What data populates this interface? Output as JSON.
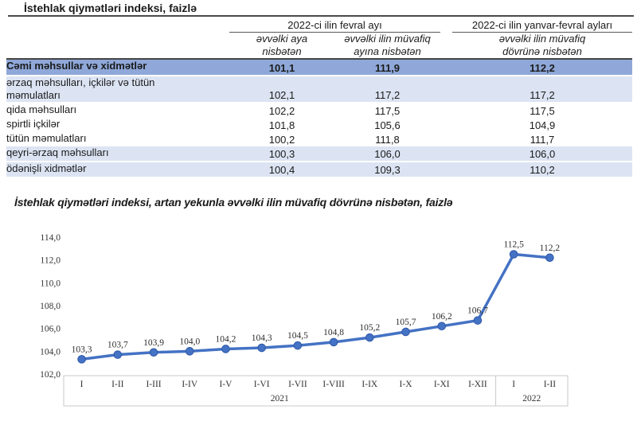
{
  "document": {
    "table_title": "İstehlak qiymətləri indeksi, faizlə",
    "chart_title": "İstehlak qiymətləri indeksi, artan yekunla əvvəlki ilin müvafiq dövrünə nisbətən, faizlə"
  },
  "table": {
    "group_headers": [
      {
        "label": "2022-ci ilin fevral ayı"
      },
      {
        "label": "2022-ci ilin yanvar-fevral ayları"
      }
    ],
    "sub_headers": [
      {
        "label": "əvvəlki aya\nnisbətən"
      },
      {
        "label": "əvvəlki ilin müvafiq\nayına nisbətən"
      },
      {
        "label": "əvvəlki ilin müvafiq\ndövrünə nisbətən"
      }
    ],
    "rows": [
      {
        "label": "Cəmi məhsullar və xidmətlər",
        "values": [
          "101,1",
          "111,9",
          "112,2"
        ],
        "style": "total",
        "indent": 0
      },
      {
        "label": "ərzaq məhsulları, içkilər və tütün\nməmulatları",
        "values": [
          "102,1",
          "117,2",
          "117,2"
        ],
        "style": "tinted",
        "indent": 1
      },
      {
        "label": "qida məhsulları",
        "values": [
          "102,2",
          "117,5",
          "117,5"
        ],
        "style": "plain",
        "indent": 2
      },
      {
        "label": "spirtli içkilər",
        "values": [
          "101,8",
          "105,6",
          "104,9"
        ],
        "style": "plain",
        "indent": 2
      },
      {
        "label": "tütün məmulatları",
        "values": [
          "100,2",
          "111,8",
          "111,7"
        ],
        "style": "plain",
        "indent": 2
      },
      {
        "label": "qeyri-ərzaq məhsulları",
        "values": [
          "100,3",
          "106,0",
          "106,0"
        ],
        "style": "tinted",
        "indent": 1
      },
      {
        "label": "ödənişli xidmətlər",
        "values": [
          "100,4",
          "109,3",
          "110,2"
        ],
        "style": "tinted",
        "indent": 1
      }
    ]
  },
  "chart_data": {
    "type": "line",
    "title": "İstehlak qiymətləri indeksi, artan yekunla əvvəlki ilin müvafiq dövrünə nisbətən, faizlə",
    "categories": [
      "I",
      "I-II",
      "I-III",
      "I-IV",
      "I-V",
      "I-VI",
      "I-VII",
      "I-VIII",
      "I-IX",
      "I-X",
      "I-XI",
      "I-XII",
      "I",
      "I-II"
    ],
    "year_groups": [
      {
        "label": "2021",
        "count": 12
      },
      {
        "label": "2022",
        "count": 2
      }
    ],
    "values": [
      103.3,
      103.7,
      103.9,
      104.0,
      104.2,
      104.3,
      104.5,
      104.8,
      105.2,
      105.7,
      106.2,
      106.7,
      112.5,
      112.2
    ],
    "point_labels": [
      "103,3",
      "103,7",
      "103,9",
      "104,0",
      "104,2",
      "104,3",
      "104,5",
      "104,8",
      "105,2",
      "105,7",
      "106,2",
      "106,7",
      "112,5",
      "112,2"
    ],
    "ylim": [
      102,
      114
    ],
    "ytick_step": 2,
    "ytick_labels": [
      "102,0",
      "104,0",
      "106,0",
      "108,0",
      "110,0",
      "112,0",
      "114,0"
    ],
    "xlabel": "",
    "ylabel": "",
    "grid": false,
    "legend": "none",
    "line_color": "#4472C4"
  },
  "colors": {
    "total_row_bg": "#8FA8D9",
    "tinted_row_bg": "#DCE4F3",
    "line_color": "#4472C4",
    "rule_color": "#4a4a4a"
  }
}
